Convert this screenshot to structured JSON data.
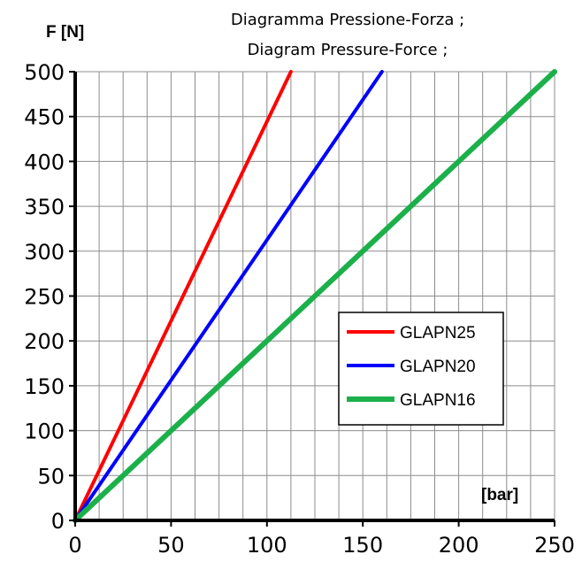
{
  "chart_data": {
    "type": "line",
    "title_lines": [
      "Diagramma Pressione-Forza ;",
      "Diagram Pressure-Force ;"
    ],
    "ylabel": "F [N]",
    "xlabel": "[bar]",
    "xlim": [
      0,
      250
    ],
    "ylim": [
      0,
      500
    ],
    "x_ticks": [
      "0",
      "50",
      "100",
      "150",
      "200",
      "250"
    ],
    "y_ticks": [
      "0",
      "50",
      "100",
      "150",
      "200",
      "250",
      "300",
      "350",
      "400",
      "450",
      "500"
    ],
    "x_ticks_values": [
      0,
      50,
      100,
      150,
      200,
      250
    ],
    "y_ticks_values": [
      0,
      50,
      100,
      150,
      200,
      250,
      300,
      350,
      400,
      450,
      500
    ],
    "grid": true,
    "legend_position": "right-middle",
    "series": [
      {
        "name": "GLAPN25",
        "color": "#ff0000",
        "x": [
          0,
          112.5
        ],
        "y": [
          0,
          500
        ]
      },
      {
        "name": "GLAPN20",
        "color": "#0000ff",
        "x": [
          0,
          160
        ],
        "y": [
          0,
          500
        ]
      },
      {
        "name": "GLAPN16",
        "color": "#1bb04a",
        "x": [
          0,
          250
        ],
        "y": [
          0,
          500
        ]
      }
    ]
  }
}
